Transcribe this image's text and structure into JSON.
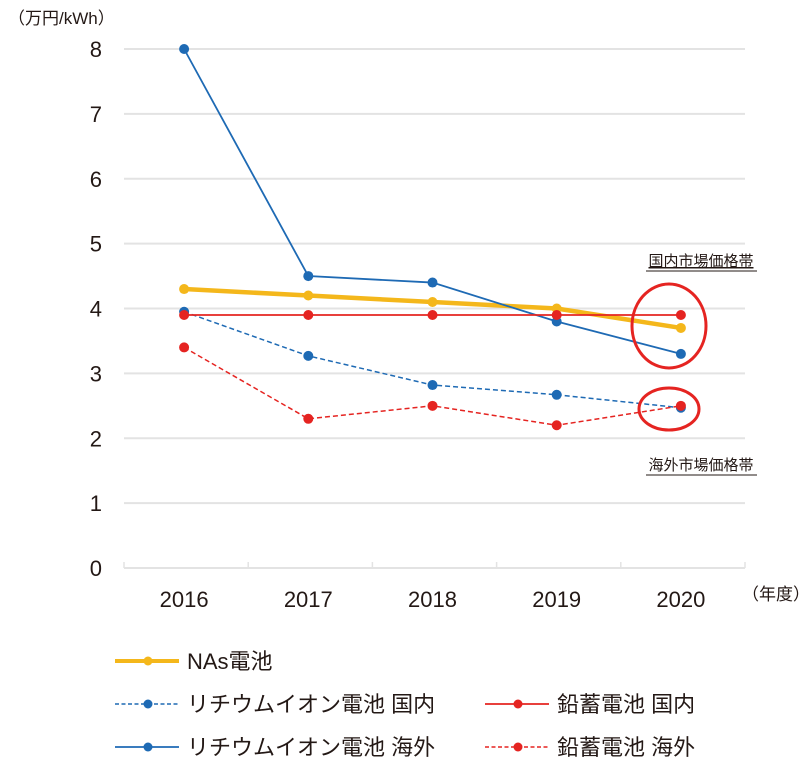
{
  "chart_data": {
    "type": "line",
    "title": "",
    "ylabel": "（万円/kWh）",
    "xlabel": "（年度）",
    "ylim": [
      0,
      8
    ],
    "yticks": [
      "0",
      "1",
      "2",
      "3",
      "4",
      "5",
      "6",
      "7",
      "8"
    ],
    "categories": [
      "2016",
      "2017",
      "2018",
      "2019",
      "2020"
    ],
    "grid": "horizontal",
    "legend_position": "bottom",
    "series": [
      {
        "name": "NAs電池",
        "color": "#F4B71B",
        "style": "solid-thick",
        "values": [
          4.3,
          4.2,
          4.1,
          4.0,
          3.7
        ]
      },
      {
        "name": "リチウムイオン電池 国内",
        "color": "#1E6AB4",
        "style": "dashed",
        "values": [
          3.95,
          3.27,
          2.82,
          2.67,
          2.47
        ]
      },
      {
        "name": "リチウムイオン電池 海外",
        "color": "#1E6AB4",
        "style": "solid",
        "values": [
          8.0,
          4.5,
          4.4,
          3.8,
          3.3
        ]
      },
      {
        "name": "鉛蓄電池 国内",
        "color": "#E52421",
        "style": "solid",
        "values": [
          3.9,
          3.9,
          3.9,
          3.9,
          3.9
        ]
      },
      {
        "name": "鉛蓄電池 海外",
        "color": "#E52421",
        "style": "dashed",
        "values": [
          3.4,
          2.3,
          2.5,
          2.2,
          2.5
        ]
      }
    ],
    "legend_order": [
      0,
      1,
      3,
      2,
      4
    ],
    "annotations": [
      {
        "text": "国内市場価格帯",
        "target": "2020 domestic price cluster",
        "circle_color": "#E52421"
      },
      {
        "text": "海外市場価格帯",
        "target": "2020 overseas price cluster",
        "circle_color": "#E52421"
      }
    ]
  }
}
